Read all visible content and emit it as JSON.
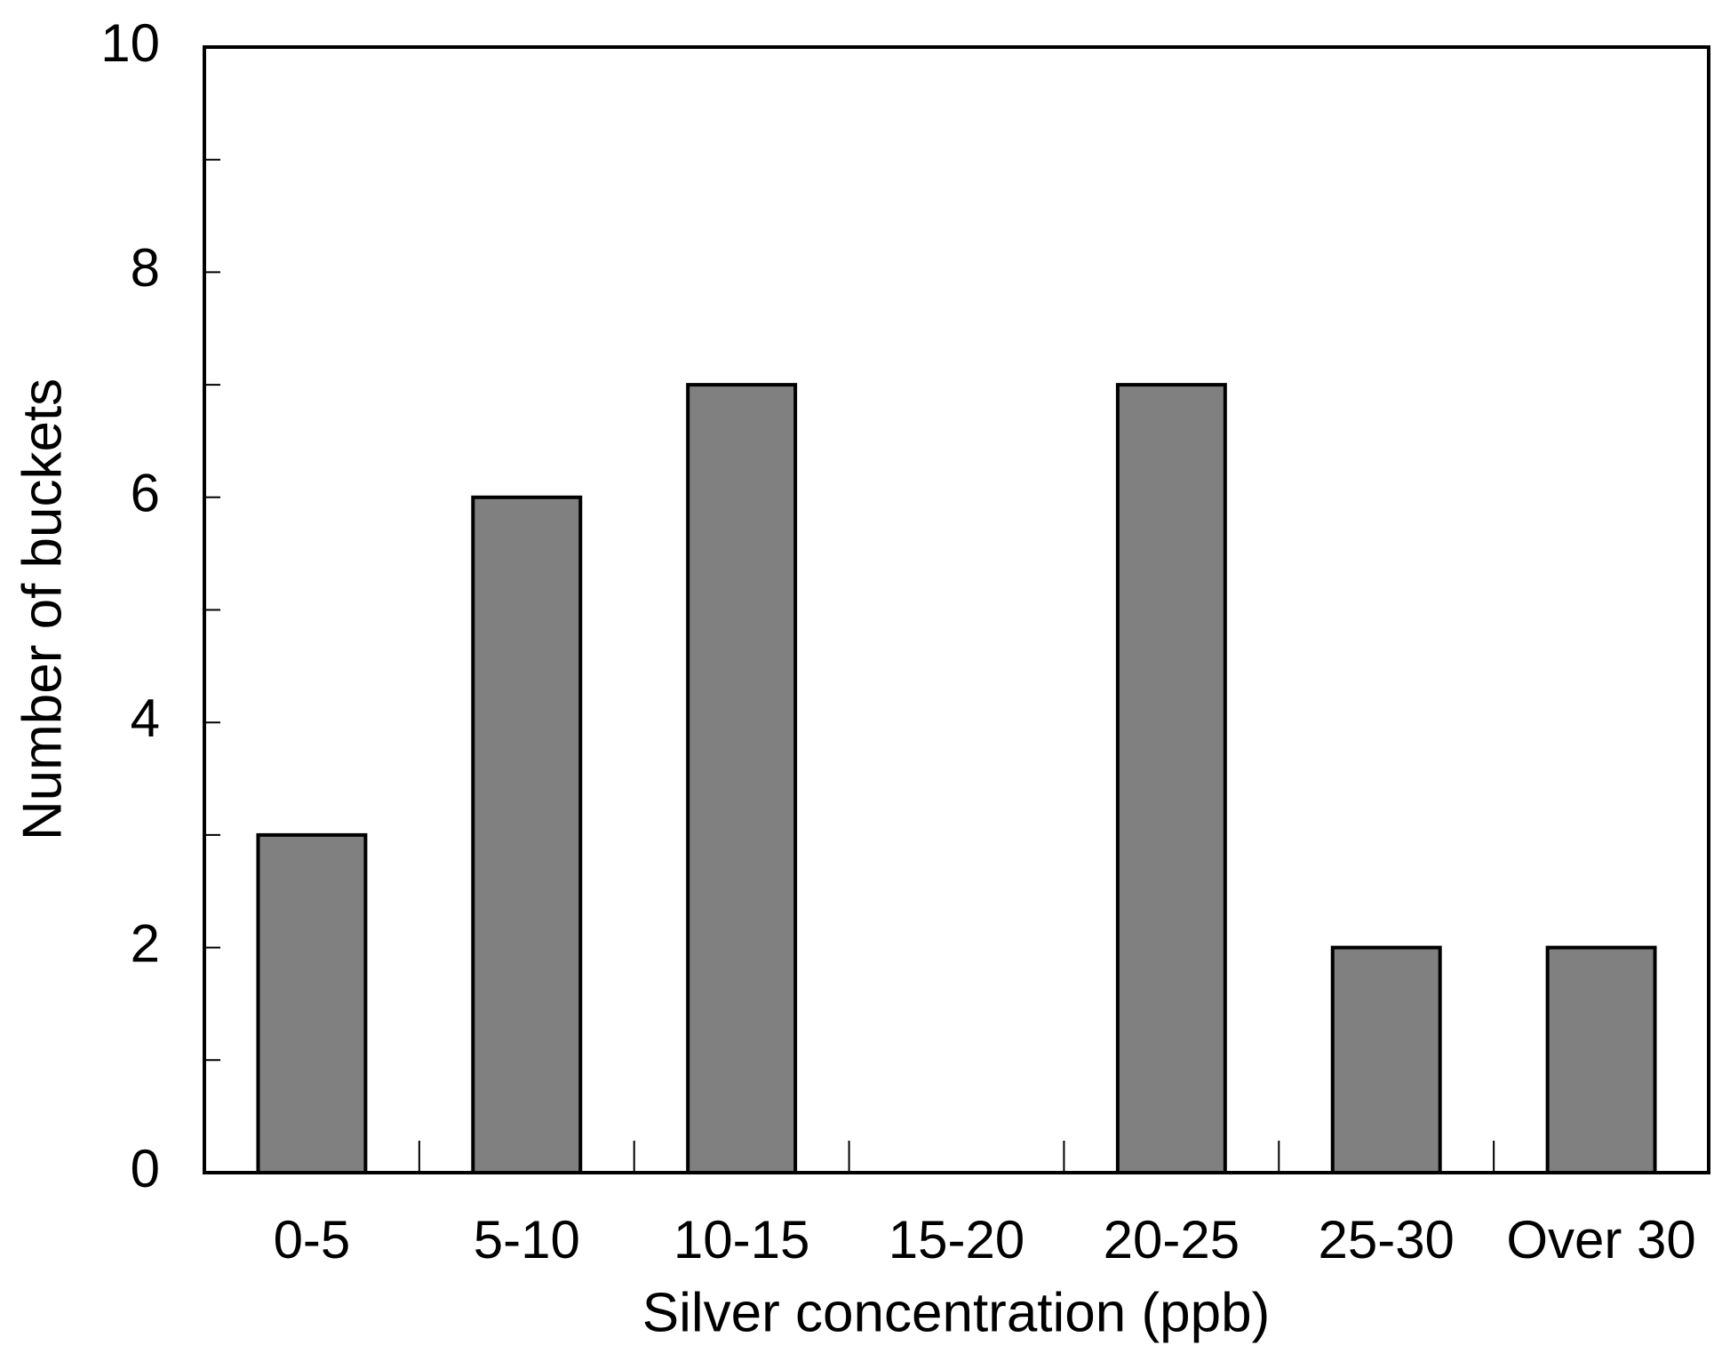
{
  "chart_data": {
    "type": "bar",
    "x_label": "Silver concentration (ppb)",
    "y_label": "Number of buckets",
    "categories": [
      "0-5",
      "5-10",
      "10-15",
      "15-20",
      "20-25",
      "25-30",
      "Over 30"
    ],
    "values": [
      3,
      6,
      7,
      0,
      7,
      2,
      2
    ],
    "color": "#808080",
    "ylim": [
      0,
      10
    ],
    "yticks": [
      0,
      2,
      4,
      6,
      8,
      10
    ],
    "yminorticks": [
      1,
      3,
      5,
      7,
      9
    ],
    "grid": false
  }
}
